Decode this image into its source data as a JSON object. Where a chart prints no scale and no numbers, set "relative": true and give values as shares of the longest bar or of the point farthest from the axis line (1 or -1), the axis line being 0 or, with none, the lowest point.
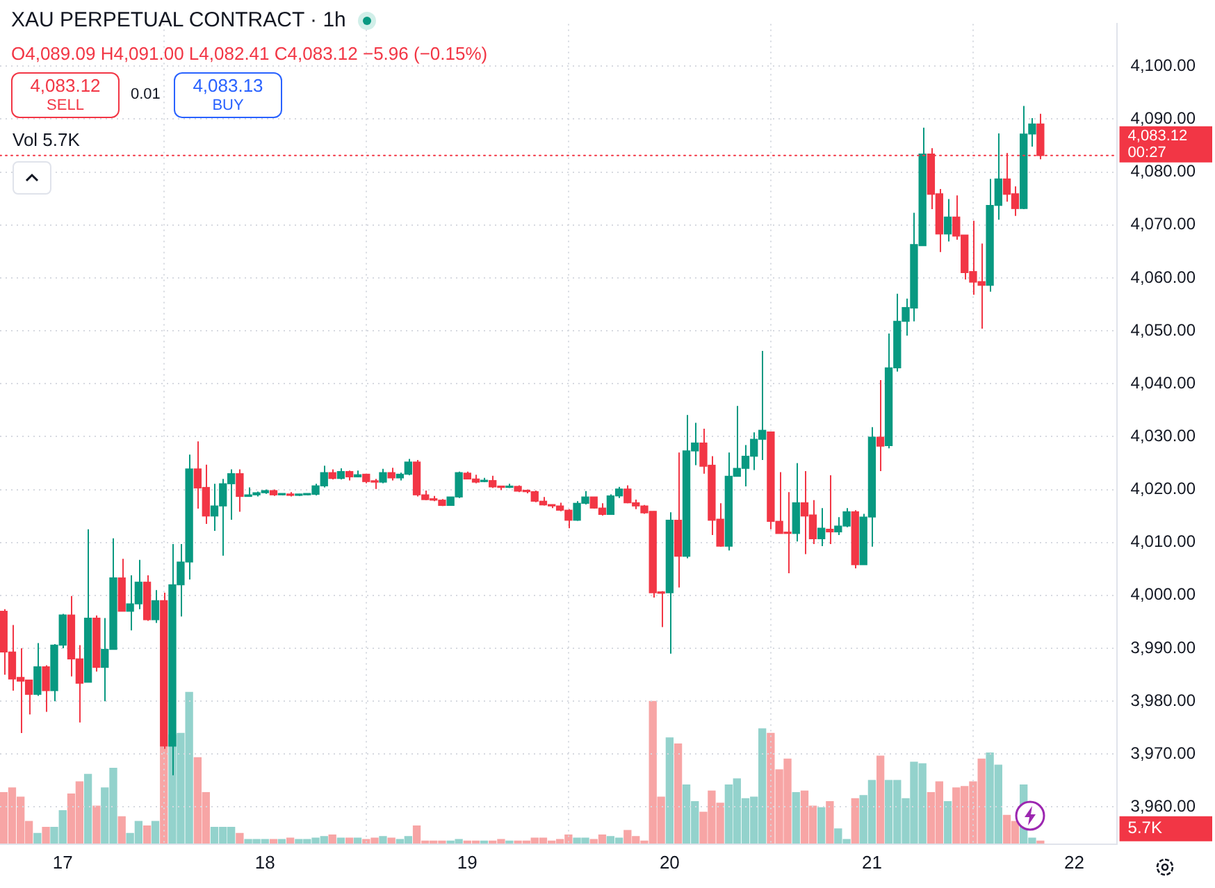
{
  "chart_data": [
    {
      "type": "candlestick",
      "title": "XAU PERPETUAL CONTRACT · 1h",
      "annotations": [
        "O4,089.09 H4,091.00 L4,082.41 C4,083.12 −5.96 (−0.15%)",
        "4,083.12",
        "SELL",
        "0.01",
        "4,083.13",
        "BUY",
        "Vol 5.7K",
        "00:27"
      ],
      "x": [
        16.708,
        16.75,
        16.792,
        16.833,
        16.875,
        16.917,
        16.958,
        17,
        17.042,
        17.083,
        17.125,
        17.167,
        17.208,
        17.25,
        17.292,
        17.333,
        17.375,
        17.417,
        17.458,
        17.5,
        17.542,
        17.583,
        17.625,
        17.667,
        17.708,
        17.75,
        17.792,
        17.833,
        17.875,
        17.917,
        17.958,
        18,
        18.042,
        18.083,
        18.125,
        18.167,
        18.208,
        18.25,
        18.292,
        18.333,
        18.375,
        18.417,
        18.458,
        18.5,
        18.542,
        18.583,
        18.625,
        18.667,
        18.708,
        18.75,
        18.792,
        18.833,
        18.875,
        18.917,
        18.958,
        19,
        19.042,
        19.083,
        19.125,
        19.167,
        19.208,
        19.25,
        19.292,
        19.333,
        19.375,
        19.417,
        19.458,
        19.5,
        19.542,
        19.583,
        19.625,
        19.667,
        19.708,
        19.75,
        19.792,
        19.833,
        19.875,
        19.917,
        19.958,
        20,
        20.042,
        20.083,
        20.125,
        20.167,
        20.208,
        20.25,
        20.292,
        20.333,
        20.375,
        20.417,
        20.458,
        20.5,
        20.542,
        20.583,
        20.625,
        20.667,
        20.708,
        20.75,
        20.792,
        20.833,
        20.875,
        20.917,
        20.958,
        21,
        21.042,
        21.083,
        21.125,
        21.167,
        21.208,
        21.25,
        21.292,
        21.333,
        21.375,
        21.417,
        21.458,
        21.5,
        21.542,
        21.583,
        21.625,
        21.667,
        21.708,
        21.75,
        21.792,
        21.833
      ],
      "ohlc": [
        [
          3997,
          3997.4,
          3985,
          3989.3
        ],
        [
          3989.3,
          3994.4,
          3982,
          3984.2
        ],
        [
          3984.5,
          3990,
          3974,
          3983.8
        ],
        [
          3984,
          3984,
          3977.5,
          3981.3
        ],
        [
          3981.3,
          3991,
          3981,
          3986.5
        ],
        [
          3986.5,
          3986.8,
          3978,
          3982
        ],
        [
          3982,
          3990.8,
          3980,
          3990.6
        ],
        [
          3990.6,
          3996.5,
          3990,
          3996.3
        ],
        [
          3996.3,
          3999.9,
          3984.7,
          3988
        ],
        [
          3988,
          3990.6,
          3976,
          3983.4
        ],
        [
          3983.6,
          4012.5,
          3983.6,
          3995.7
        ],
        [
          3995.7,
          3996.2,
          3985.6,
          3986.4
        ],
        [
          3986.4,
          3995.7,
          3980,
          3989.8
        ],
        [
          3989.8,
          4010.8,
          3989.8,
          4003.3
        ],
        [
          4003.3,
          4006.9,
          3997,
          3997
        ],
        [
          3997,
          4003.8,
          3993.4,
          3998.4
        ],
        [
          3998.4,
          4006.7,
          3997.4,
          4002.5
        ],
        [
          4002.5,
          4003.8,
          3995.2,
          3995.4
        ],
        [
          3995.4,
          4001,
          3994.8,
          3999
        ],
        [
          3999,
          4000.5,
          3971,
          3971.5
        ],
        [
          3971.5,
          4009.7,
          3966,
          4002
        ],
        [
          4002,
          4009.7,
          3996,
          4006.3
        ],
        [
          4006.3,
          4026.6,
          4003,
          4023.9
        ],
        [
          4023.9,
          4029.1,
          4016.4,
          4020.3
        ],
        [
          4020.4,
          4024.7,
          4013.5,
          4015
        ],
        [
          4015,
          4021.1,
          4012.2,
          4016.9
        ],
        [
          4016.9,
          4022,
          4007.5,
          4021.1
        ],
        [
          4021.1,
          4023.8,
          4014.3,
          4023
        ],
        [
          4023,
          4023.8,
          4015.8,
          4018.7
        ],
        [
          4018.7,
          4020.4,
          4018.7,
          4019
        ],
        [
          4019,
          4019.6,
          4018.7,
          4019.4
        ],
        [
          4019.4,
          4020,
          4019.2,
          4019.8
        ],
        [
          4019.8,
          4020,
          4018.8,
          4019
        ],
        [
          4019,
          4019.3,
          4018.9,
          4019.1
        ],
        [
          4019.1,
          4019.5,
          4018.7,
          4018.9
        ],
        [
          4018.9,
          4019.2,
          4018.8,
          4019
        ],
        [
          4019,
          4019.3,
          4018.9,
          4019.1
        ],
        [
          4019.1,
          4021.1,
          4018.9,
          4020.7
        ],
        [
          4020.7,
          4024.5,
          4020.4,
          4023.2
        ],
        [
          4023.2,
          4023.8,
          4021.9,
          4022.1
        ],
        [
          4022.1,
          4024,
          4021.9,
          4023.4
        ],
        [
          4023.4,
          4023.6,
          4021.7,
          4022.4
        ],
        [
          4022.4,
          4023.6,
          4022.3,
          4022.8
        ],
        [
          4022.9,
          4023,
          4021.2,
          4021.5
        ],
        [
          4021.5,
          4022,
          4020.1,
          4021.4
        ],
        [
          4021.4,
          4023.9,
          4021.2,
          4023.2
        ],
        [
          4023.2,
          4024.1,
          4021.7,
          4022.2
        ],
        [
          4022.2,
          4023.2,
          4021.7,
          4022.9
        ],
        [
          4022.9,
          4025.8,
          4022.7,
          4025.2
        ],
        [
          4025.2,
          4025.6,
          4018.7,
          4019
        ],
        [
          4019,
          4019.8,
          4018,
          4018.1
        ],
        [
          4018.1,
          4018.8,
          4017.8,
          4018
        ],
        [
          4018,
          4018.2,
          4016.9,
          4017
        ],
        [
          4017,
          4018.6,
          4017,
          4018.6
        ],
        [
          4018.6,
          4023.4,
          4018.4,
          4023.2
        ],
        [
          4023.1,
          4023.4,
          4021.9,
          4022
        ],
        [
          4022,
          4022.8,
          4021.2,
          4021.4
        ],
        [
          4021.5,
          4022.2,
          4021.4,
          4021.7
        ],
        [
          4021.7,
          4022.6,
          4020.3,
          4020.5
        ],
        [
          4020.5,
          4020.7,
          4019.9,
          4020.4
        ],
        [
          4020.4,
          4021.1,
          4020.3,
          4020.6
        ],
        [
          4020.6,
          4020.8,
          4019.5,
          4019.7
        ],
        [
          4019.7,
          4020,
          4019.3,
          4019.6
        ],
        [
          4019.6,
          4019.8,
          4017.6,
          4017.8
        ],
        [
          4017.8,
          4018.6,
          4017,
          4017.1
        ],
        [
          4017.1,
          4017.2,
          4016.5,
          4016.9
        ],
        [
          4016.9,
          4017.5,
          4015.9,
          4016.1
        ],
        [
          4016.1,
          4016.3,
          4012.7,
          4014.2
        ],
        [
          4014.2,
          4017.8,
          4014.1,
          4017.4
        ],
        [
          4017.4,
          4019.7,
          4017.2,
          4018.6
        ],
        [
          4018.6,
          4018.6,
          4016.4,
          4016.5
        ],
        [
          4016.5,
          4017.4,
          4015.1,
          4015.3
        ],
        [
          4015.3,
          4019.1,
          4015.3,
          4018.8
        ],
        [
          4018.8,
          4020.5,
          4018.4,
          4020.1
        ],
        [
          4020.1,
          4020.8,
          4017.4,
          4017.5
        ],
        [
          4017.5,
          4018.1,
          4016.3,
          4016.9
        ],
        [
          4016.9,
          4017.1,
          4015.4,
          4015.6
        ],
        [
          4015.9,
          4015.9,
          3999.6,
          4000.5
        ],
        [
          4000.5,
          4000.8,
          3994,
          4000.4
        ],
        [
          4000.5,
          4015.7,
          3989,
          4014.2
        ],
        [
          4014.2,
          4027,
          4001.5,
          4007.4
        ],
        [
          4007.4,
          4034.1,
          4007,
          4027.3
        ],
        [
          4027.3,
          4032.6,
          4024.6,
          4028.8
        ],
        [
          4028.8,
          4031.5,
          4023,
          4024.4
        ],
        [
          4024.6,
          4026.3,
          4011.4,
          4014.2
        ],
        [
          4014.4,
          4017.4,
          4009.2,
          4009.3
        ],
        [
          4009.3,
          4027,
          4008.5,
          4022.5
        ],
        [
          4022.5,
          4035.8,
          4022.5,
          4024
        ],
        [
          4024,
          4028.4,
          4020.6,
          4026.3
        ],
        [
          4026.3,
          4030.8,
          4023.7,
          4029.5
        ],
        [
          4029.5,
          4046.2,
          4025.6,
          4031.2
        ],
        [
          4030.9,
          4030.9,
          4012.5,
          4014
        ],
        [
          4014,
          4023.3,
          4011.7,
          4011.7
        ],
        [
          4011.9,
          4019.5,
          4004.2,
          4011.7
        ],
        [
          4011.7,
          4025,
          4010.2,
          4017.5
        ],
        [
          4017.5,
          4023.5,
          4007.8,
          4015
        ],
        [
          4015.2,
          4018,
          4009.7,
          4010.7
        ],
        [
          4010.7,
          4016.5,
          4009.3,
          4012.7
        ],
        [
          4012.5,
          4022.7,
          4009.7,
          4012
        ],
        [
          4012,
          4014.8,
          4011.4,
          4013.1
        ],
        [
          4013.1,
          4016.5,
          4012.9,
          4015.8
        ],
        [
          4015.8,
          4016.1,
          4005.1,
          4005.8
        ],
        [
          4005.8,
          4015.4,
          4005.8,
          4014.8
        ],
        [
          4014.8,
          4031.8,
          4009.2,
          4029.9
        ],
        [
          4029.9,
          4040.7,
          4023.5,
          4028.2
        ],
        [
          4028.3,
          4049.5,
          4027.8,
          4043
        ],
        [
          4043,
          4057,
          4042.3,
          4051.8
        ],
        [
          4051.8,
          4056.1,
          4049.1,
          4054.4
        ],
        [
          4054.3,
          4072.3,
          4051.8,
          4066.3
        ],
        [
          4066.1,
          4088.4,
          4066.1,
          4083.4
        ],
        [
          4083.4,
          4084.5,
          4073,
          4075.8
        ],
        [
          4075.9,
          4076.8,
          4064.9,
          4068.3
        ],
        [
          4068.3,
          4074.9,
          4066.9,
          4071.5
        ],
        [
          4071.5,
          4075.6,
          4067.2,
          4067.9
        ],
        [
          4068.1,
          4068.1,
          4059.7,
          4061
        ],
        [
          4061.2,
          4070.8,
          4056.8,
          4059.2
        ],
        [
          4059.3,
          4066.5,
          4050.4,
          4058.6
        ],
        [
          4058.6,
          4078.7,
          4057.4,
          4073.7
        ],
        [
          4073.7,
          4087.3,
          4071,
          4078.7
        ],
        [
          4078.7,
          4083.6,
          4074.4,
          4075.8
        ],
        [
          4075.9,
          4077.3,
          4071.7,
          4073.1
        ],
        [
          4073.1,
          4092.5,
          4073,
          4087.2
        ],
        [
          4087.2,
          4090.2,
          4084.8,
          4089.1
        ],
        [
          4089.09,
          4091,
          4082.41,
          4083.12
        ]
      ],
      "colors": [
        "#f23645",
        "#f23645",
        "#f23645",
        "#f23645",
        "#089981",
        "#f23645",
        "#089981",
        "#089981",
        "#f23645",
        "#f23645",
        "#089981",
        "#f23645",
        "#089981",
        "#089981",
        "#f23645",
        "#089981",
        "#089981",
        "#f23645",
        "#089981",
        "#f23645",
        "#089981",
        "#089981",
        "#089981",
        "#f23645",
        "#f23645",
        "#089981",
        "#089981",
        "#089981",
        "#f23645",
        "#089981",
        "#089981",
        "#089981",
        "#f23645",
        "#089981",
        "#f23645",
        "#089981",
        "#089981",
        "#089981",
        "#089981",
        "#f23645",
        "#089981",
        "#f23645",
        "#089981",
        "#f23645",
        "#f23645",
        "#089981",
        "#f23645",
        "#089981",
        "#089981",
        "#f23645",
        "#f23645",
        "#f23645",
        "#f23645",
        "#089981",
        "#089981",
        "#f23645",
        "#f23645",
        "#089981",
        "#f23645",
        "#f23645",
        "#089981",
        "#f23645",
        "#f23645",
        "#f23645",
        "#f23645",
        "#f23645",
        "#f23645",
        "#f23645",
        "#089981",
        "#089981",
        "#f23645",
        "#f23645",
        "#089981",
        "#089981",
        "#f23645",
        "#f23645",
        "#f23645",
        "#f23645",
        "#f23645",
        "#089981",
        "#f23645",
        "#089981",
        "#089981",
        "#f23645",
        "#f23645",
        "#f23645",
        "#089981",
        "#089981",
        "#089981",
        "#089981",
        "#089981",
        "#f23645",
        "#f23645",
        "#f23645",
        "#089981",
        "#f23645",
        "#f23645",
        "#089981",
        "#f23645",
        "#089981",
        "#089981",
        "#f23645",
        "#089981",
        "#089981",
        "#f23645",
        "#089981",
        "#089981",
        "#089981",
        "#089981",
        "#089981",
        "#f23645",
        "#f23645",
        "#089981",
        "#f23645",
        "#f23645",
        "#f23645",
        "#f23645",
        "#089981",
        "#089981",
        "#f23645",
        "#f23645",
        "#089981",
        "#089981",
        "#f23645"
      ],
      "xlim": [
        16.69,
        22.21
      ],
      "xticks": [
        17,
        18,
        19,
        20,
        21,
        22
      ],
      "ylim": [
        3953,
        4108
      ],
      "yticks": [
        {
          "value": 3960,
          "label": "3,960.00"
        },
        {
          "value": 3970,
          "label": "3,970.00"
        },
        {
          "value": 3980,
          "label": "3,980.00"
        },
        {
          "value": 3990,
          "label": "3,990.00"
        },
        {
          "value": 4000,
          "label": "4,000.00"
        },
        {
          "value": 4010,
          "label": "4,010.00"
        },
        {
          "value": 4020,
          "label": "4,020.00"
        },
        {
          "value": 4030,
          "label": "4,030.00"
        },
        {
          "value": 4040,
          "label": "4,040.00"
        },
        {
          "value": 4050,
          "label": "4,050.00"
        },
        {
          "value": 4060,
          "label": "4,060.00"
        },
        {
          "value": 4070,
          "label": "4,070.00"
        },
        {
          "value": 4080,
          "label": "4,080.00"
        },
        {
          "value": 4090,
          "label": "4,090.00"
        },
        {
          "value": 4100,
          "label": "4,100.00"
        }
      ],
      "grid": true,
      "ref_lines": [
        {
          "axis": "y",
          "value": 4083.12,
          "label": "4,083.12",
          "color": "#f23645",
          "line_style": "dotted"
        }
      ]
    },
    {
      "type": "bar",
      "relative": true,
      "x": [
        16.708,
        16.75,
        16.792,
        16.833,
        16.875,
        16.917,
        16.958,
        17,
        17.042,
        17.083,
        17.125,
        17.167,
        17.208,
        17.25,
        17.292,
        17.333,
        17.375,
        17.417,
        17.458,
        17.5,
        17.542,
        17.583,
        17.625,
        17.667,
        17.708,
        17.75,
        17.792,
        17.833,
        17.875,
        17.917,
        17.958,
        18,
        18.042,
        18.083,
        18.125,
        18.167,
        18.208,
        18.25,
        18.292,
        18.333,
        18.375,
        18.417,
        18.458,
        18.5,
        18.542,
        18.583,
        18.625,
        18.667,
        18.708,
        18.75,
        18.792,
        18.833,
        18.875,
        18.917,
        18.958,
        19,
        19.042,
        19.083,
        19.125,
        19.167,
        19.208,
        19.25,
        19.292,
        19.333,
        19.375,
        19.417,
        19.458,
        19.5,
        19.542,
        19.583,
        19.625,
        19.667,
        19.708,
        19.75,
        19.792,
        19.833,
        19.875,
        19.917,
        19.958,
        20,
        20.042,
        20.083,
        20.125,
        20.167,
        20.208,
        20.25,
        20.292,
        20.333,
        20.375,
        20.417,
        20.458,
        20.5,
        20.542,
        20.583,
        20.625,
        20.667,
        20.708,
        20.75,
        20.792,
        20.833,
        20.875,
        20.917,
        20.958,
        21,
        21.042,
        21.083,
        21.125,
        21.167,
        21.208,
        21.25,
        21.292,
        21.333,
        21.375,
        21.417,
        21.458,
        21.5,
        21.542,
        21.583,
        21.625,
        21.667,
        21.708,
        21.75,
        21.792,
        21.833
      ],
      "values": [
        0.34,
        0.37,
        0.31,
        0.15,
        0.07,
        0.11,
        0.11,
        0.22,
        0.33,
        0.41,
        0.46,
        0.25,
        0.37,
        0.5,
        0.18,
        0.07,
        0.15,
        0.12,
        0.15,
        0.64,
        0.72,
        0.73,
        1,
        0.57,
        0.34,
        0.11,
        0.11,
        0.11,
        0.07,
        0.03,
        0.03,
        0.03,
        0.03,
        0.03,
        0.04,
        0.03,
        0.03,
        0.04,
        0.05,
        0.06,
        0.04,
        0.04,
        0.04,
        0.03,
        0.04,
        0.05,
        0.04,
        0.03,
        0.05,
        0.12,
        0.02,
        0.02,
        0.02,
        0.02,
        0.03,
        0.02,
        0.02,
        0.02,
        0.02,
        0.03,
        0.02,
        0.02,
        0.02,
        0.04,
        0.04,
        0.02,
        0.03,
        0.06,
        0.04,
        0.04,
        0.03,
        0.06,
        0.05,
        0.04,
        0.09,
        0.05,
        0.02,
        0.94,
        0.31,
        0.7,
        0.66,
        0.39,
        0.28,
        0.21,
        0.35,
        0.27,
        0.39,
        0.43,
        0.3,
        0.31,
        0.76,
        0.73,
        0.49,
        0.56,
        0.34,
        0.35,
        0.25,
        0.24,
        0.28,
        0.1,
        0.03,
        0.3,
        0.32,
        0.42,
        0.58,
        0.42,
        0.42,
        0.3,
        0.54,
        0.53,
        0.34,
        0.41,
        0.28,
        0.37,
        0.38,
        0.41,
        0.56,
        0.6,
        0.52,
        0.19,
        0.15,
        0.39,
        0.04,
        0.02
      ],
      "colors": [
        "#f7a5a5",
        "#f7a5a5",
        "#f7a5a5",
        "#f7a5a5",
        "#93d2cc",
        "#f7a5a5",
        "#93d2cc",
        "#93d2cc",
        "#f7a5a5",
        "#f7a5a5",
        "#93d2cc",
        "#f7a5a5",
        "#93d2cc",
        "#93d2cc",
        "#f7a5a5",
        "#93d2cc",
        "#93d2cc",
        "#f7a5a5",
        "#93d2cc",
        "#f7a5a5",
        "#93d2cc",
        "#93d2cc",
        "#93d2cc",
        "#f7a5a5",
        "#f7a5a5",
        "#93d2cc",
        "#93d2cc",
        "#93d2cc",
        "#f7a5a5",
        "#93d2cc",
        "#93d2cc",
        "#93d2cc",
        "#f7a5a5",
        "#93d2cc",
        "#f7a5a5",
        "#93d2cc",
        "#93d2cc",
        "#93d2cc",
        "#93d2cc",
        "#f7a5a5",
        "#93d2cc",
        "#f7a5a5",
        "#93d2cc",
        "#f7a5a5",
        "#f7a5a5",
        "#93d2cc",
        "#f7a5a5",
        "#93d2cc",
        "#93d2cc",
        "#f7a5a5",
        "#f7a5a5",
        "#f7a5a5",
        "#f7a5a5",
        "#93d2cc",
        "#93d2cc",
        "#f7a5a5",
        "#f7a5a5",
        "#93d2cc",
        "#f7a5a5",
        "#f7a5a5",
        "#93d2cc",
        "#f7a5a5",
        "#f7a5a5",
        "#f7a5a5",
        "#f7a5a5",
        "#f7a5a5",
        "#f7a5a5",
        "#f7a5a5",
        "#93d2cc",
        "#93d2cc",
        "#f7a5a5",
        "#f7a5a5",
        "#93d2cc",
        "#93d2cc",
        "#f7a5a5",
        "#f7a5a5",
        "#f7a5a5",
        "#f7a5a5",
        "#f7a5a5",
        "#93d2cc",
        "#f7a5a5",
        "#93d2cc",
        "#93d2cc",
        "#f7a5a5",
        "#f7a5a5",
        "#f7a5a5",
        "#93d2cc",
        "#93d2cc",
        "#93d2cc",
        "#93d2cc",
        "#93d2cc",
        "#f7a5a5",
        "#f7a5a5",
        "#f7a5a5",
        "#93d2cc",
        "#f7a5a5",
        "#f7a5a5",
        "#93d2cc",
        "#f7a5a5",
        "#93d2cc",
        "#93d2cc",
        "#f7a5a5",
        "#93d2cc",
        "#93d2cc",
        "#f7a5a5",
        "#93d2cc",
        "#93d2cc",
        "#93d2cc",
        "#93d2cc",
        "#93d2cc",
        "#f7a5a5",
        "#f7a5a5",
        "#93d2cc",
        "#f7a5a5",
        "#f7a5a5",
        "#f7a5a5",
        "#f7a5a5",
        "#93d2cc",
        "#93d2cc",
        "#f7a5a5",
        "#f7a5a5",
        "#93d2cc",
        "#93d2cc",
        "#f7a5a5"
      ],
      "xlim": [
        16.69,
        22.21
      ],
      "annotations": [
        "5.7K"
      ]
    }
  ]
}
